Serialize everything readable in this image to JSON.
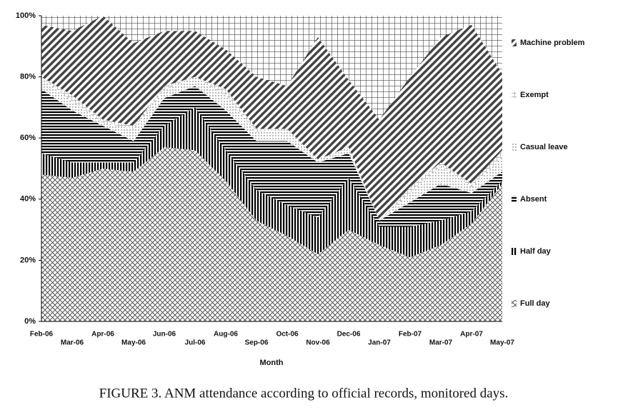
{
  "chart_data": {
    "type": "stacked_area",
    "caption": "FIGURE 3.  ANM attendance according to official records, monitored days.",
    "x_label": "Month",
    "categories": [
      "Feb-06",
      "Mar-06",
      "Apr-06",
      "May-06",
      "Jun-06",
      "Jul-06",
      "Aug-06",
      "Sep-06",
      "Oct-06",
      "Nov-06",
      "Dec-06",
      "Jan-07",
      "Feb-07",
      "Mar-07",
      "Apr-07",
      "May-07"
    ],
    "series": [
      {
        "name": "Full day",
        "values": [
          48,
          47,
          50,
          49,
          57,
          56,
          46,
          33,
          28,
          22,
          30,
          25,
          21,
          25,
          32,
          45
        ]
      },
      {
        "name": "Half day",
        "values": [
          7,
          5,
          2,
          3,
          7,
          14,
          10,
          10,
          10,
          12,
          17,
          6,
          10,
          8,
          4,
          1
        ]
      },
      {
        "name": "Absent",
        "values": [
          21,
          17,
          12,
          7,
          9,
          7,
          13,
          16,
          21,
          18,
          8,
          2,
          8,
          12,
          6,
          3
        ]
      },
      {
        "name": "Casual leave",
        "values": [
          4,
          3,
          1,
          4,
          3,
          3,
          5,
          3,
          4,
          1,
          2,
          0,
          3,
          6,
          2,
          5
        ]
      },
      {
        "name": "Exempt",
        "values": [
          0,
          2,
          1,
          1,
          1,
          0,
          2,
          1,
          0,
          0,
          0,
          0,
          2,
          1,
          1,
          2
        ]
      },
      {
        "name": "Machine problem",
        "values": [
          17,
          21,
          34,
          27,
          18,
          15,
          13,
          17,
          14,
          40,
          22,
          33,
          36,
          41,
          52,
          25
        ]
      }
    ],
    "ylim": [
      0,
      100
    ],
    "yticks": [
      {
        "value": 0,
        "label": "0%"
      },
      {
        "value": 20,
        "label": "20%"
      },
      {
        "value": 40,
        "label": "40%"
      },
      {
        "value": 60,
        "label": "60%"
      },
      {
        "value": 80,
        "label": "80%"
      },
      {
        "value": 100,
        "label": "100%"
      }
    ]
  }
}
